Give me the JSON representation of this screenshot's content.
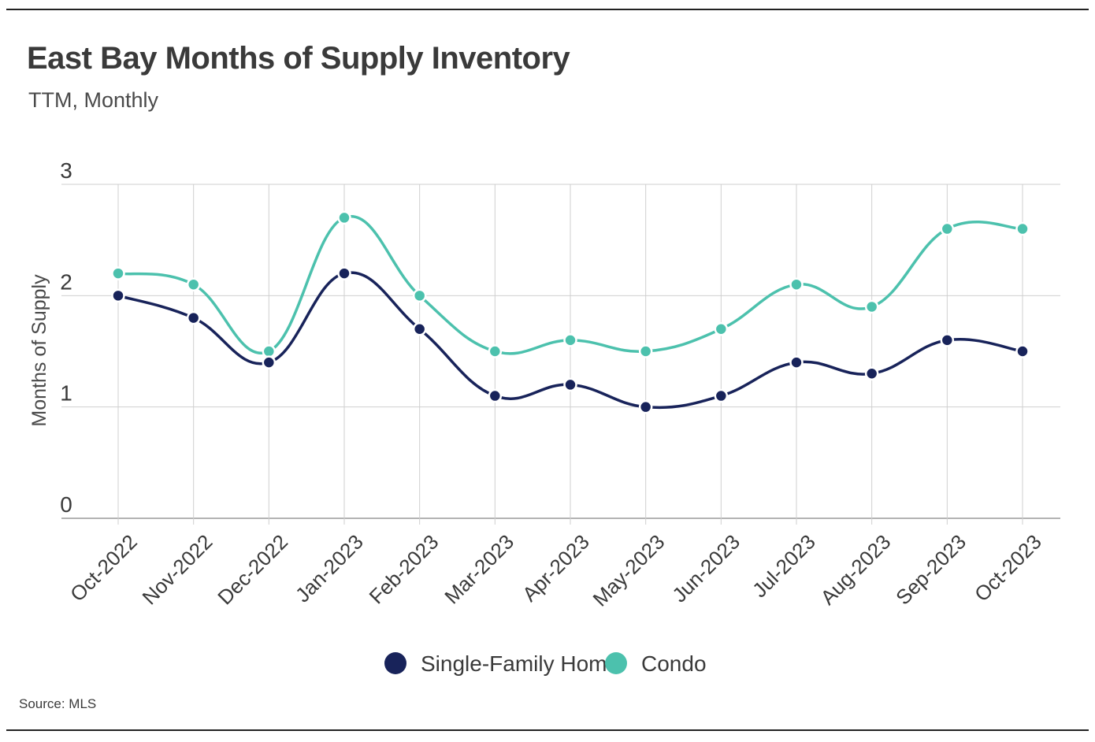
{
  "title": "East Bay Months of Supply Inventory",
  "subtitle": "TTM, Monthly",
  "source": "Source:  MLS",
  "colors": {
    "single_family": "#18235a",
    "condo": "#4cc1ad",
    "grid": "#d0d0d0",
    "text": "#3a3a3a"
  },
  "chart_data": {
    "type": "line",
    "title": "East Bay Months of Supply Inventory",
    "subtitle": "TTM, Monthly",
    "xlabel": "",
    "ylabel": "Months of Supply",
    "ylim": [
      0,
      3
    ],
    "yticks": [
      "0",
      "1",
      "2",
      "3"
    ],
    "grid": true,
    "legend": "bottom-center",
    "categories": [
      "Oct-2022",
      "Nov-2022",
      "Dec-2022",
      "Jan-2023",
      "Feb-2023",
      "Mar-2023",
      "Apr-2023",
      "May-2023",
      "Jun-2023",
      "Jul-2023",
      "Aug-2023",
      "Sep-2023",
      "Oct-2023"
    ],
    "series": [
      {
        "name": "Single-Family Home",
        "color": "#18235a",
        "values": [
          2.0,
          1.8,
          1.4,
          2.2,
          1.7,
          1.1,
          1.2,
          1.0,
          1.1,
          1.4,
          1.3,
          1.6,
          1.5
        ]
      },
      {
        "name": "Condo",
        "color": "#4cc1ad",
        "values": [
          2.2,
          2.1,
          1.5,
          2.7,
          2.0,
          1.5,
          1.6,
          1.5,
          1.7,
          2.1,
          1.9,
          2.6,
          2.6
        ]
      }
    ]
  }
}
